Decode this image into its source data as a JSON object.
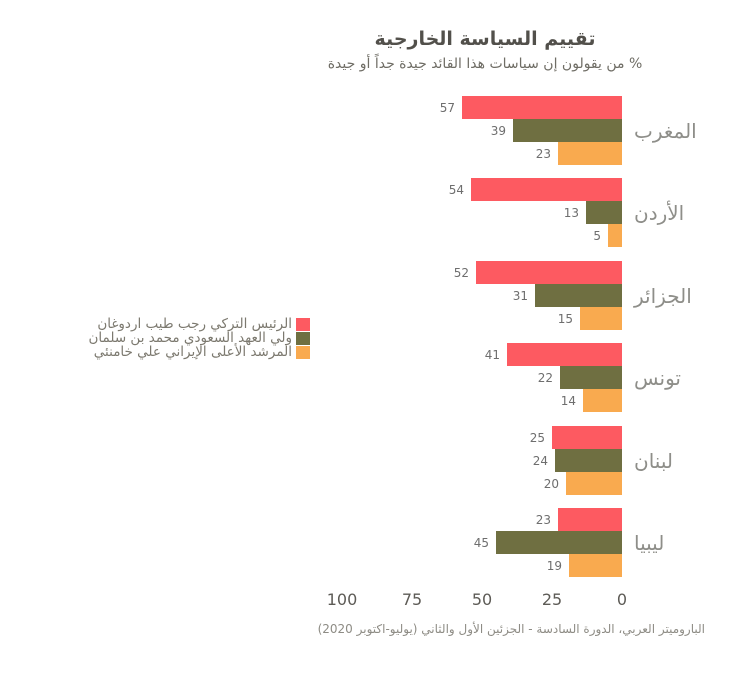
{
  "header": {
    "title": "تقييم السياسة الخارجية",
    "subtitle": "% من يقولون إن سياسات هذا القائد جيدة جداً أو جيدة"
  },
  "legend": {
    "items": [
      {
        "label": "الرئيس التركي رجب طيب اردوغان",
        "color": "#fd5a61"
      },
      {
        "label": "ولي العهد السعودي محمد بن سلمان",
        "color": "#6f6f41"
      },
      {
        "label": "المرشد الأعلى الإيراني علي خامنئي",
        "color": "#f9aa4f"
      }
    ]
  },
  "chart_data": {
    "type": "bar",
    "orientation": "horizontal",
    "direction": "rtl",
    "title": "تقييم السياسة الخارجية",
    "subtitle": "% من يقولون إن سياسات هذا القائد جيدة جداً أو جيدة",
    "categories": [
      "المغرب",
      "الأردن",
      "الجزائر",
      "تونس",
      "لبنان",
      "ليبيا"
    ],
    "series": [
      {
        "name": "الرئيس التركي رجب طيب اردوغان",
        "color": "#fd5a61",
        "values": [
          57,
          54,
          52,
          41,
          25,
          23
        ]
      },
      {
        "name": "ولي العهد السعودي محمد بن سلمان",
        "color": "#6f6f41",
        "values": [
          39,
          13,
          31,
          22,
          24,
          45
        ]
      },
      {
        "name": "المرشد الأعلى الإيراني علي خامنئي",
        "color": "#f9aa4f",
        "values": [
          23,
          5,
          15,
          14,
          20,
          19
        ]
      }
    ],
    "xlim": [
      0,
      100
    ],
    "x_ticks": [
      100,
      75,
      50,
      25,
      0
    ],
    "value_labels": true,
    "grid": false,
    "legend_position": "left-middle"
  },
  "footer": {
    "source": "الباروميتر العربي، الدورة السادسة - الجزئين الأول والثاني (يوليو-اكتوبر 2020)"
  }
}
